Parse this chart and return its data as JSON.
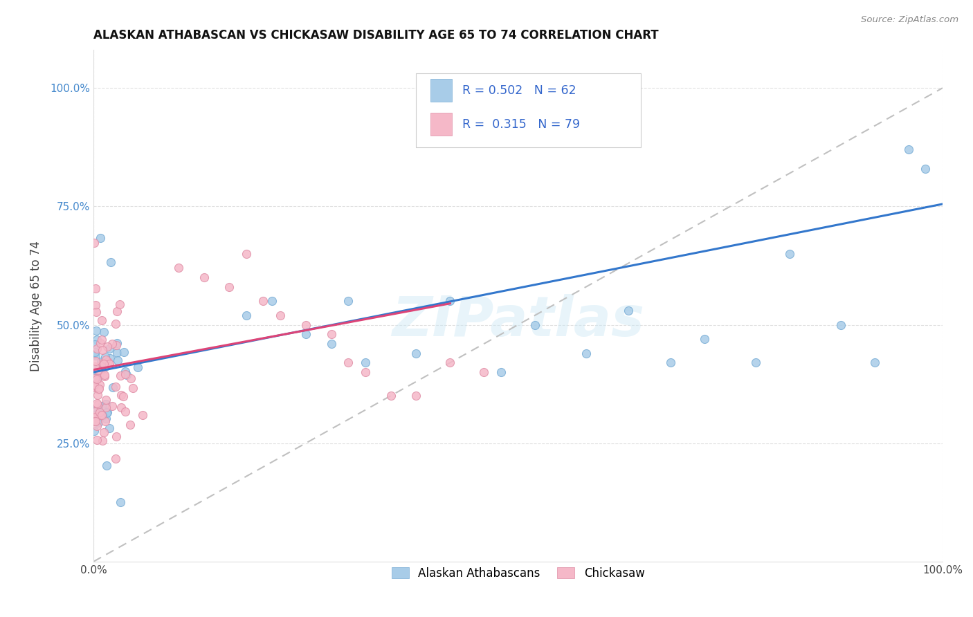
{
  "title": "ALASKAN ATHABASCAN VS CHICKASAW DISABILITY AGE 65 TO 74 CORRELATION CHART",
  "source": "Source: ZipAtlas.com",
  "ylabel": "Disability Age 65 to 74",
  "xlim": [
    0,
    1
  ],
  "ylim": [
    0,
    1.08
  ],
  "blue_R": "0.502",
  "blue_N": "62",
  "pink_R": "0.315",
  "pink_N": "79",
  "blue_color": "#a8cce8",
  "pink_color": "#f5b8c8",
  "blue_edge_color": "#7aaed6",
  "pink_edge_color": "#e090a8",
  "blue_line_color": "#3377cc",
  "pink_line_color": "#dd4477",
  "dashed_line_color": "#c0c0c0",
  "watermark": "ZIPatlas",
  "legend_R_N_color": "#3366cc",
  "ytick_color": "#4488cc",
  "title_color": "#111111",
  "source_color": "#888888",
  "ylabel_color": "#444444",
  "grid_color": "#e0e0e0",
  "blue_line_start_y": 0.4,
  "blue_line_end_y": 0.755,
  "pink_line_start_x": 0.0,
  "pink_line_start_y": 0.405,
  "pink_line_end_x": 0.42,
  "pink_line_end_y": 0.545
}
